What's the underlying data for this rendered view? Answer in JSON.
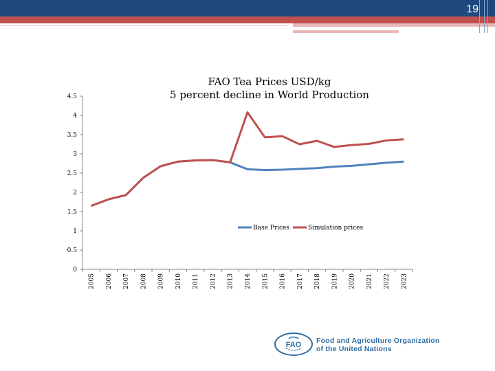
{
  "slide": {
    "page_number": "19"
  },
  "chart_data": {
    "type": "line",
    "title": "FAO Tea Prices USD/kg",
    "subtitle": "5 percent decline in World Production",
    "x": [
      "2005",
      "2006",
      "2007",
      "2008",
      "2009",
      "2010",
      "2011",
      "2012",
      "2013",
      "2014",
      "2015",
      "2016",
      "2017",
      "2018",
      "2019",
      "2020",
      "2021",
      "2022",
      "2023"
    ],
    "yticks": [
      "0",
      "0.5",
      "1",
      "1.5",
      "2",
      "2.5",
      "3",
      "3.5",
      "4",
      "4.5"
    ],
    "ylim": [
      0,
      4.5
    ],
    "series": [
      {
        "name": "Base Prices",
        "color": "#4f81bd",
        "values": [
          1.65,
          1.82,
          1.93,
          2.38,
          2.68,
          2.8,
          2.83,
          2.84,
          2.78,
          2.6,
          2.58,
          2.59,
          2.61,
          2.63,
          2.67,
          2.69,
          2.73,
          2.77,
          2.8
        ]
      },
      {
        "name": "Simulation prices",
        "color": "#c0504d",
        "values": [
          1.65,
          1.82,
          1.93,
          2.38,
          2.68,
          2.8,
          2.83,
          2.84,
          2.78,
          4.08,
          3.43,
          3.46,
          3.25,
          3.34,
          3.18,
          3.23,
          3.26,
          3.35,
          3.38
        ]
      }
    ],
    "legend_position": "inside-lower-right",
    "grid": false
  },
  "footer": {
    "logo_letters": "FAO",
    "org_line1": "Food and Agriculture Organization",
    "org_line2": "of the United Nations"
  }
}
